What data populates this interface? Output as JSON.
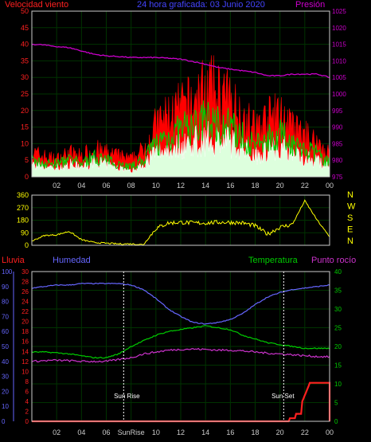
{
  "header": {
    "left_label": "Velocidad viento",
    "center_label": "24 hora graficada: 03 Junio 2020",
    "right_label": "Presión"
  },
  "bottom_header": {
    "rain": "Lluvia",
    "humidity": "Humedad",
    "temperature": "Temperatura",
    "dewpoint": "Punto rocío"
  },
  "direction_labels": [
    "N",
    "W",
    "S",
    "E",
    "N"
  ],
  "time_ticks": [
    "02",
    "04",
    "06",
    "08",
    "10",
    "12",
    "14",
    "16",
    "18",
    "20",
    "22",
    "00"
  ],
  "bottom_time_ticks": [
    "02",
    "04",
    "06",
    "SunRise",
    "10",
    "12",
    "14",
    "16",
    "18",
    "20",
    "22",
    "00"
  ],
  "annotations": {
    "sunrise": "Sun Rise",
    "sunset": "Sun Set"
  },
  "colors": {
    "wind_gust": "#ff0000",
    "wind_avg": "#ffffff",
    "wind_mid": "#00cc00",
    "pressure": "#cc00cc",
    "direction": "#ffff00",
    "rain": "#ff2020",
    "humidity": "#6666ff",
    "temperature": "#00cc00",
    "dewpoint": "#cc33cc",
    "grid": "#003300",
    "axis": "#cccccc"
  },
  "chart_data": [
    {
      "type": "line",
      "ylim_left": [
        0,
        50
      ],
      "yticks_left": [
        "0",
        "5",
        "10",
        "15",
        "20",
        "25",
        "30",
        "35",
        "40",
        "45",
        "50"
      ],
      "ylim_right": [
        975,
        1025
      ],
      "yticks_right": [
        "975",
        "980",
        "985",
        "990",
        "995",
        "1000",
        "1005",
        "1010",
        "1015",
        "1020",
        "1025"
      ],
      "x_hours": [
        0,
        1,
        2,
        3,
        4,
        5,
        6,
        7,
        8,
        9,
        10,
        11,
        12,
        13,
        14,
        15,
        16,
        17,
        18,
        19,
        20,
        21,
        22,
        23,
        24
      ],
      "series": [
        {
          "values_gust": [
            7,
            6,
            5,
            7,
            6,
            8,
            7,
            6,
            5,
            8,
            15,
            18,
            20,
            22,
            26,
            25,
            22,
            18,
            14,
            17,
            18,
            14,
            12,
            10,
            7
          ]
        },
        {
          "values_mid": [
            5,
            4,
            4,
            5,
            4,
            6,
            5,
            4,
            3,
            5,
            10,
            12,
            14,
            15,
            17,
            16,
            15,
            12,
            9,
            12,
            13,
            10,
            8,
            7,
            4
          ]
        },
        {
          "values_avg": [
            4,
            3,
            3,
            4,
            3,
            5,
            4,
            3,
            2,
            4,
            8,
            9,
            10,
            11,
            12,
            12,
            11,
            9,
            7,
            9,
            10,
            8,
            6,
            5,
            3
          ]
        },
        {
          "values_pressure": [
            1015,
            1014.8,
            1014.3,
            1014,
            1013,
            1012,
            1011.5,
            1011.3,
            1011,
            1011,
            1011,
            1010.8,
            1010.5,
            1009.8,
            1009,
            1008,
            1007.5,
            1007,
            1006.5,
            1005.5,
            1005.5,
            1006,
            1006,
            1006,
            1005
          ]
        }
      ]
    },
    {
      "type": "line",
      "ylim": [
        0,
        360
      ],
      "yticks": [
        "0",
        "90",
        "180",
        "270",
        "360"
      ],
      "x_hours": [
        0,
        1,
        2,
        3,
        4,
        5,
        6,
        7,
        8,
        9,
        10,
        11,
        12,
        13,
        14,
        15,
        16,
        17,
        18,
        19,
        20,
        21,
        22,
        23,
        24
      ],
      "series": [
        {
          "values_direction": [
            30,
            70,
            75,
            100,
            40,
            20,
            15,
            10,
            10,
            5,
            120,
            160,
            165,
            160,
            160,
            165,
            165,
            160,
            140,
            80,
            130,
            150,
            320,
            180,
            60
          ]
        }
      ]
    },
    {
      "type": "line",
      "ylim_humidity": [
        0,
        100
      ],
      "yticks_humidity": [
        "0",
        "10",
        "20",
        "30",
        "40",
        "50",
        "60",
        "70",
        "80",
        "90",
        "100"
      ],
      "ylim_rain": [
        0,
        30
      ],
      "yticks_rain": [
        "0",
        "2",
        "4",
        "6",
        "8",
        "10",
        "12",
        "14",
        "16",
        "18",
        "20",
        "22",
        "24",
        "26",
        "28",
        "30"
      ],
      "ylim_temp": [
        0,
        40
      ],
      "yticks_temp": [
        "0",
        "5",
        "10",
        "15",
        "20",
        "25",
        "30",
        "35",
        "40"
      ],
      "x_hours": [
        0,
        1,
        2,
        3,
        4,
        5,
        6,
        7,
        8,
        9,
        10,
        11,
        12,
        13,
        14,
        15,
        16,
        17,
        18,
        19,
        20,
        21,
        22,
        23,
        24
      ],
      "series": [
        {
          "values_humidity": [
            89,
            90,
            91,
            91,
            92,
            92,
            92,
            92,
            91,
            88,
            82,
            75,
            70,
            66,
            65,
            66,
            68,
            72,
            78,
            83,
            86,
            88,
            89,
            90,
            91
          ]
        },
        {
          "values_temperature": [
            18.5,
            18.5,
            18.3,
            18,
            17.5,
            17,
            17,
            18,
            20,
            21.5,
            23,
            24,
            24.5,
            25,
            25.5,
            25,
            24.5,
            23,
            22,
            21,
            20.5,
            20,
            19.5,
            19.5,
            19.5
          ]
        },
        {
          "values_dewpoint": [
            16,
            16.2,
            16.3,
            16.2,
            16,
            16,
            16,
            16.5,
            17,
            18,
            18.5,
            19,
            19.2,
            19.3,
            19.2,
            19,
            19,
            18.8,
            18.5,
            18.2,
            18,
            17.8,
            17.5,
            17.3,
            17.2
          ]
        },
        {
          "values_rain": [
            0,
            0,
            0,
            0,
            0,
            0,
            0,
            0,
            0,
            0,
            0,
            0,
            0,
            0,
            0,
            0,
            0,
            0,
            0,
            0,
            0,
            0.6,
            2.6,
            7.7,
            7.7
          ]
        }
      ]
    }
  ]
}
